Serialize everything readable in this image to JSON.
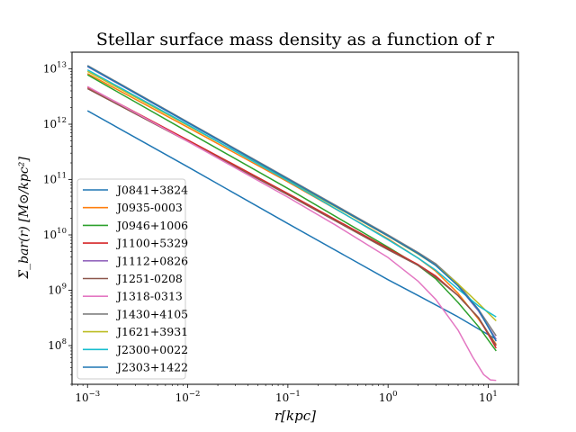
{
  "chart_data": {
    "type": "line",
    "title": "Stellar surface mass density as a function of r",
    "xlabel": "r[kpc]",
    "ylabel": "Σ_bar(r) [M⊙/kpc²]",
    "xscale": "log",
    "yscale": "log",
    "xlim": [
      0.0007,
      20
    ],
    "ylim": [
      20000000,
      20000000000000
    ],
    "grid": false,
    "legend_position": "lower-left",
    "x_ticks": [
      {
        "value": 0.001,
        "base": "10",
        "exp": "−3"
      },
      {
        "value": 0.01,
        "base": "10",
        "exp": "−2"
      },
      {
        "value": 0.1,
        "base": "10",
        "exp": "−1"
      },
      {
        "value": 1,
        "base": "10",
        "exp": "0"
      },
      {
        "value": 10,
        "base": "10",
        "exp": "1"
      }
    ],
    "y_ticks": [
      {
        "value": 100000000,
        "base": "10",
        "exp": "8"
      },
      {
        "value": 1000000000,
        "base": "10",
        "exp": "9"
      },
      {
        "value": 10000000000,
        "base": "10",
        "exp": "10"
      },
      {
        "value": 100000000000,
        "base": "10",
        "exp": "11"
      },
      {
        "value": 1000000000000,
        "base": "10",
        "exp": "12"
      },
      {
        "value": 10000000000000,
        "base": "10",
        "exp": "13"
      }
    ],
    "series": [
      {
        "name": "J0841+3824",
        "color": "#1f77b4",
        "x": [
          0.001,
          0.01,
          0.1,
          1,
          2,
          5,
          8,
          12
        ],
        "y": [
          1750000000000.0,
          170000000000.0,
          16000000000.0,
          1550000000.0,
          800000000.0,
          330000000.0,
          200000000.0,
          130000000.0
        ]
      },
      {
        "name": "J0935-0003",
        "color": "#ff7f0e",
        "x": [
          0.001,
          0.01,
          0.1,
          1,
          2,
          3,
          5,
          8,
          12
        ],
        "y": [
          8200000000000.0,
          880000000000.0,
          91000000000.0,
          8500000000.0,
          3800000000.0,
          2200000000.0,
          880000000.0,
          300000000.0,
          105000000.0
        ]
      },
      {
        "name": "J0946+1006",
        "color": "#2ca02c",
        "x": [
          0.001,
          0.01,
          0.1,
          1,
          2,
          3,
          5,
          8,
          12
        ],
        "y": [
          7800000000000.0,
          730000000000.0,
          69000000000.0,
          6000000000.0,
          2800000000.0,
          1600000000.0,
          600000000.0,
          220000000.0,
          80000000.0
        ]
      },
      {
        "name": "J1100+5329",
        "color": "#d62728",
        "x": [
          0.001,
          0.01,
          0.1,
          1,
          2,
          3,
          5,
          8,
          12
        ],
        "y": [
          4700000000000.0,
          520000000000.0,
          56000000000.0,
          5700000000.0,
          2900000000.0,
          1800000000.0,
          800000000.0,
          320000000.0,
          90000000.0
        ]
      },
      {
        "name": "J1112+0826",
        "color": "#9467bd",
        "x": [
          0.001,
          0.01,
          0.1,
          1,
          2,
          3,
          5,
          8,
          12
        ],
        "y": [
          11000000000000.0,
          1060000000000.0,
          102000000000.0,
          9800000000.0,
          4700000000.0,
          2900000000.0,
          1200000000.0,
          420000000.0,
          130000000.0
        ]
      },
      {
        "name": "J1251-0208",
        "color": "#8c564b",
        "x": [
          0.001,
          0.01,
          0.1,
          1,
          2,
          3,
          5,
          8,
          12
        ],
        "y": [
          4400000000000.0,
          490000000000.0,
          53000000000.0,
          5400000000.0,
          2800000000.0,
          1700000000.0,
          800000000.0,
          320000000.0,
          100000000.0
        ]
      },
      {
        "name": "J1318-0313",
        "color": "#e377c2",
        "x": [
          0.001,
          0.01,
          0.1,
          0.3,
          1,
          2,
          3,
          5,
          7,
          9,
          10.5,
          12
        ],
        "y": [
          4800000000000.0,
          490000000000.0,
          48000000000.0,
          15000000000.0,
          3900000000.0,
          1450000000.0,
          680000000.0,
          190000000.0,
          62000000.0,
          30000000.0,
          24000000.0,
          23500000.0
        ]
      },
      {
        "name": "J1430+4105",
        "color": "#7f7f7f",
        "x": [
          0.001,
          0.01,
          0.1,
          1,
          2,
          3,
          5,
          8,
          12
        ],
        "y": [
          11500000000000.0,
          1100000000000.0,
          105000000000.0,
          10000000000.0,
          4800000000.0,
          3000000000.0,
          1300000000.0,
          450000000.0,
          150000000.0
        ]
      },
      {
        "name": "J1621+3931",
        "color": "#bcbd22",
        "x": [
          0.001,
          0.01,
          0.1,
          1,
          2,
          3,
          5,
          8,
          12
        ],
        "y": [
          9000000000000.0,
          950000000000.0,
          98000000000.0,
          9500000000.0,
          4500000000.0,
          2800000000.0,
          1300000000.0,
          580000000.0,
          280000000.0
        ]
      },
      {
        "name": "J2300+0022",
        "color": "#17becf",
        "x": [
          0.001,
          0.01,
          0.1,
          1,
          2,
          3,
          5,
          8,
          12
        ],
        "y": [
          9600000000000.0,
          980000000000.0,
          95000000000.0,
          8200000000.0,
          3800000000.0,
          2300000000.0,
          1050000000.0,
          520000000.0,
          330000000.0
        ]
      },
      {
        "name": "J2303+1422",
        "color": "#1f77b4",
        "x": [
          0.001,
          0.01,
          0.1,
          1,
          2,
          3,
          5,
          8,
          12
        ],
        "y": [
          11200000000000.0,
          1070000000000.0,
          102000000000.0,
          9600000000.0,
          4600000000.0,
          2800000000.0,
          1200000000.0,
          440000000.0,
          120000000.0
        ]
      }
    ]
  }
}
